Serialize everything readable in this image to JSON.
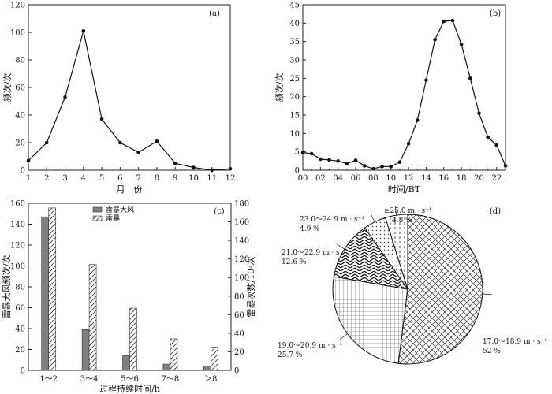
{
  "chart_data": [
    {
      "type": "line",
      "panel_label": "(a)",
      "xlabel": "月　份",
      "ylabel": "频次/次",
      "x": [
        1,
        2,
        3,
        4,
        5,
        6,
        7,
        8,
        9,
        10,
        11,
        12
      ],
      "y": [
        7,
        20,
        53,
        101,
        37,
        20,
        13,
        21,
        5,
        2,
        0,
        1
      ],
      "xlim": [
        1,
        12
      ],
      "ylim": [
        0,
        120
      ],
      "xticks": [
        "1",
        "2",
        "3",
        "4",
        "5",
        "6",
        "7",
        "8",
        "9",
        "10",
        "11",
        "12"
      ],
      "yticks": [
        "0",
        "20",
        "40",
        "60",
        "80",
        "100",
        "120"
      ]
    },
    {
      "type": "line",
      "panel_label": "(b)",
      "xlabel": "时间/BT",
      "ylabel": "频次/次",
      "x": [
        0,
        1,
        2,
        3,
        4,
        5,
        6,
        7,
        8,
        9,
        10,
        11,
        12,
        13,
        14,
        15,
        16,
        17,
        18,
        19,
        20,
        21,
        22,
        23
      ],
      "y": [
        4.8,
        4.5,
        3,
        2.8,
        2.5,
        1.8,
        2.7,
        1.2,
        0.4,
        1,
        1,
        2.2,
        7.2,
        13.6,
        24.5,
        35.5,
        40.5,
        40.7,
        34.2,
        25,
        15.5,
        9,
        6.8,
        1.2
      ],
      "xlim": [
        0,
        23
      ],
      "ylim": [
        0,
        45
      ],
      "xticks": [
        "00",
        "02",
        "04",
        "06",
        "08",
        "10",
        "12",
        "14",
        "16",
        "18",
        "20",
        "22"
      ],
      "yticks": [
        "0",
        "5",
        "10",
        "15",
        "20",
        "25",
        "30",
        "35",
        "40",
        "45"
      ]
    },
    {
      "type": "bar",
      "panel_label": "(c)",
      "xlabel": "过程持续时间/h",
      "ylabel": "雷暴大风频次/次",
      "ylabel_right": "雷暴次数/10²次",
      "categories": [
        "1～2",
        "3～4",
        "5～6",
        "7～8",
        "＞8"
      ],
      "series": [
        {
          "name": "雷暴大风",
          "axis": "left",
          "values": [
            147,
            39,
            14,
            6,
            4
          ]
        },
        {
          "name": "雷暴",
          "axis": "right",
          "values": [
            175,
            114,
            67,
            34,
            25
          ]
        }
      ],
      "ylim": [
        0,
        160
      ],
      "ylim_right": [
        0,
        180
      ],
      "yticks": [
        "0",
        "20",
        "40",
        "60",
        "80",
        "100",
        "120",
        "140",
        "160"
      ],
      "yticks_right": [
        "0",
        "20",
        "40",
        "60",
        "80",
        "100",
        "120",
        "140",
        "160",
        "180"
      ]
    },
    {
      "type": "pie",
      "panel_label": "(d)",
      "slices": [
        {
          "label": "17.0～18.9 m · s⁻¹",
          "pct_text": "52 %",
          "value": 52
        },
        {
          "label": "19.0～20.9 m · s⁻¹",
          "pct_text": "25.7 %",
          "value": 25.7
        },
        {
          "label": "21.0～22.9 m · s⁻¹",
          "pct_text": "12.6 %",
          "value": 12.6
        },
        {
          "label": "23.0～24.9 m · s⁻¹",
          "pct_text": "4.9 %",
          "value": 4.9
        },
        {
          "label": "≥25.0 m · s⁻¹",
          "pct_text": "4.8 %",
          "value": 4.8
        }
      ]
    }
  ]
}
